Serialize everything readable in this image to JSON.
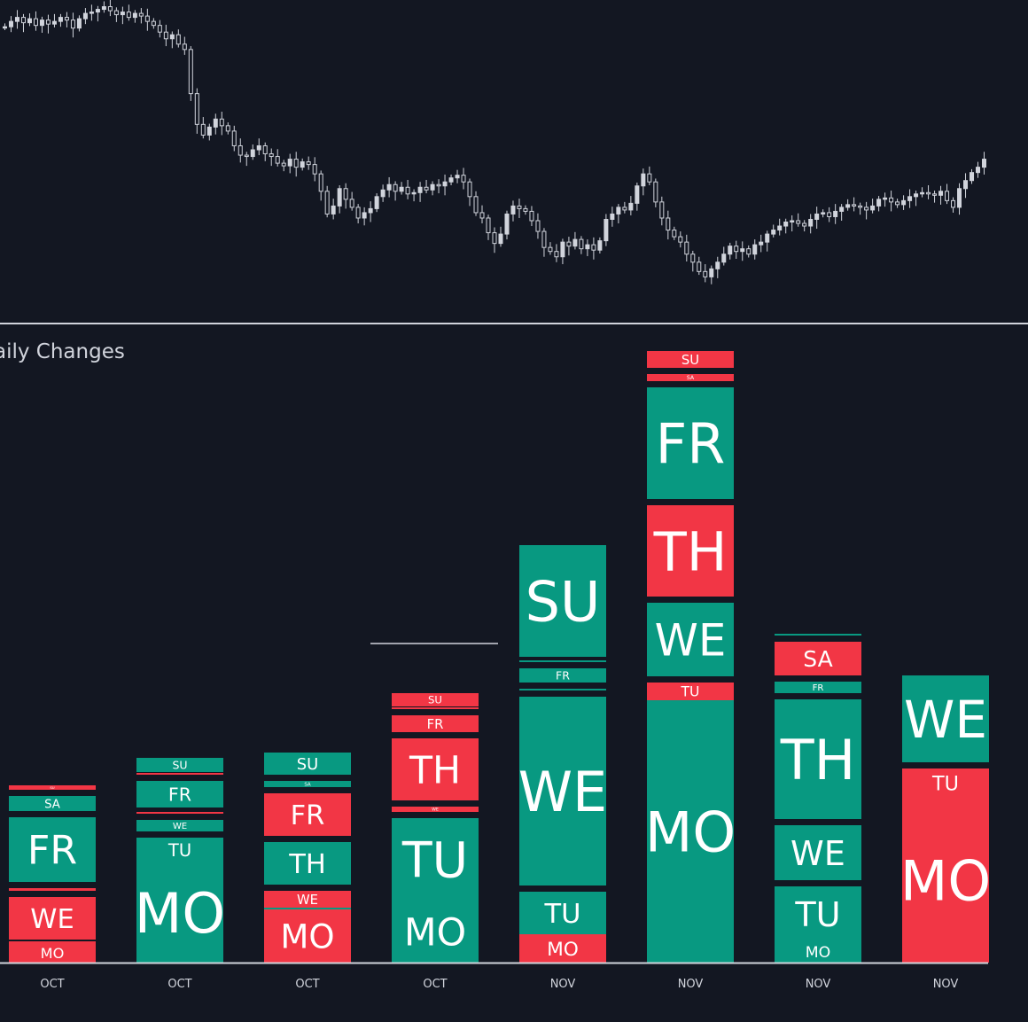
{
  "panel": {
    "title": "aily Changes"
  },
  "colors": {
    "background": "#131722",
    "up": "#089981",
    "down": "#f23645",
    "text": "#ffffff",
    "axis": "#d1d4dc",
    "candle": "#d1d4dc"
  },
  "price_chart": {
    "type": "candlestick",
    "close_series": [
      98.5,
      98.9,
      99.2,
      98.8,
      99.1,
      98.6,
      99.0,
      98.7,
      98.9,
      99.2,
      99.0,
      98.4,
      99.1,
      99.5,
      99.6,
      99.8,
      100.0,
      99.7,
      99.4,
      99.6,
      99.2,
      99.5,
      99.3,
      98.9,
      98.6,
      98.1,
      97.6,
      97.9,
      97.2,
      96.8,
      93.5,
      91.2,
      90.4,
      91.0,
      91.6,
      91.1,
      90.7,
      89.6,
      88.9,
      88.8,
      89.3,
      89.6,
      89.0,
      88.8,
      88.3,
      88.1,
      88.6,
      88.0,
      88.4,
      88.2,
      87.5,
      86.2,
      84.5,
      85.1,
      86.4,
      85.6,
      85.0,
      84.2,
      84.6,
      84.9,
      85.8,
      86.3,
      86.7,
      86.2,
      86.5,
      86.0,
      86.1,
      86.5,
      86.3,
      86.7,
      86.6,
      86.9,
      87.2,
      87.4,
      86.9,
      85.8,
      84.6,
      84.2,
      83.1,
      82.3,
      83.0,
      84.5,
      85.1,
      84.9,
      84.7,
      84.0,
      83.2,
      82.0,
      81.7,
      81.3,
      82.4,
      82.1,
      82.6,
      81.9,
      82.2,
      81.8,
      82.5,
      84.1,
      84.5,
      85.0,
      84.8,
      85.3,
      86.6,
      87.5,
      86.9,
      85.4,
      84.2,
      83.3,
      82.8,
      82.4,
      81.5,
      80.9,
      80.2,
      79.8,
      80.4,
      80.9,
      81.5,
      82.1,
      81.7,
      81.9,
      81.5,
      82.2,
      82.4,
      83.0,
      83.3,
      83.6,
      83.9,
      84.0,
      83.8,
      83.6,
      84.1,
      84.5,
      84.6,
      84.3,
      84.7,
      85.0,
      85.2,
      85.1,
      85.0,
      84.8,
      85.1,
      85.6,
      85.7,
      85.4,
      85.2,
      85.5,
      85.8,
      86.0,
      86.1,
      86.0,
      85.9,
      86.2,
      85.5,
      85.0,
      86.4,
      87.0,
      87.6,
      88.0,
      88.6
    ]
  },
  "chart_data": {
    "type": "bar",
    "stacking": "stacked",
    "categories": [
      "OCT",
      "OCT",
      "OCT",
      "OCT",
      "NOV",
      "NOV",
      "NOV",
      "NOV"
    ],
    "y_range": [
      0,
      7.4
    ],
    "reference_line_value": 3.3,
    "stacks": [
      {
        "label": "OCT",
        "segments": [
          {
            "day": "MO",
            "value": 0.22,
            "dir": "down"
          },
          {
            "day": "TU",
            "value": 0.04,
            "dir": "down"
          },
          {
            "day": "WE",
            "value": 0.55,
            "dir": "down"
          },
          {
            "day": "TH",
            "value": 0.1,
            "dir": "down"
          },
          {
            "day": "FR",
            "value": 0.8,
            "dir": "up"
          },
          {
            "day": "SA",
            "value": 0.24,
            "dir": "up"
          },
          {
            "day": "SU",
            "value": 0.12,
            "dir": "down"
          }
        ]
      },
      {
        "label": "OCT",
        "segments": [
          {
            "day": "MO",
            "value": 1.13,
            "dir": "up"
          },
          {
            "day": "TU",
            "value": 0.35,
            "dir": "up"
          },
          {
            "day": "WE",
            "value": 0.2,
            "dir": "up"
          },
          {
            "day": "TH",
            "value": 0.07,
            "dir": "down"
          },
          {
            "day": "FR",
            "value": 0.37,
            "dir": "up"
          },
          {
            "day": "SA",
            "value": 0.03,
            "dir": "down"
          },
          {
            "day": "SU",
            "value": 0.23,
            "dir": "up"
          }
        ]
      },
      {
        "label": "OCT",
        "segments": [
          {
            "day": "MO",
            "value": 0.6,
            "dir": "down"
          },
          {
            "day": "TU",
            "value": 0.02,
            "dir": "up"
          },
          {
            "day": "WE",
            "value": 0.26,
            "dir": "down"
          },
          {
            "day": "TH",
            "value": 0.55,
            "dir": "up"
          },
          {
            "day": "FR",
            "value": 0.55,
            "dir": "down"
          },
          {
            "day": "SA",
            "value": 0.14,
            "dir": "up"
          },
          {
            "day": "SU",
            "value": 0.32,
            "dir": "up"
          }
        ]
      },
      {
        "label": "OCT",
        "segments": [
          {
            "day": "MO",
            "value": 0.7,
            "dir": "up"
          },
          {
            "day": "TU",
            "value": 1.0,
            "dir": "up"
          },
          {
            "day": "WE",
            "value": 0.13,
            "dir": "down"
          },
          {
            "day": "TH",
            "value": 0.77,
            "dir": "down"
          },
          {
            "day": "FR",
            "value": 0.26,
            "dir": "down"
          },
          {
            "day": "SA",
            "value": 0.03,
            "dir": "down"
          },
          {
            "day": "SU",
            "value": 0.22,
            "dir": "down"
          }
        ]
      },
      {
        "label": "NOV",
        "segments": [
          {
            "day": "MO",
            "value": 0.32,
            "dir": "down"
          },
          {
            "day": "TU",
            "value": 0.55,
            "dir": "up"
          },
          {
            "day": "WE",
            "value": 2.2,
            "dir": "up"
          },
          {
            "day": "TH",
            "value": 0.09,
            "dir": "up"
          },
          {
            "day": "FR",
            "value": 0.23,
            "dir": "up"
          },
          {
            "day": "SA",
            "value": 0.06,
            "dir": "up"
          },
          {
            "day": "SU",
            "value": 1.33,
            "dir": "up"
          }
        ]
      },
      {
        "label": "NOV",
        "segments": [
          {
            "day": "MO",
            "value": 2.96,
            "dir": "up"
          },
          {
            "day": "TU",
            "value": 0.27,
            "dir": "down"
          },
          {
            "day": "WE",
            "value": 0.9,
            "dir": "up"
          },
          {
            "day": "TH",
            "value": 1.1,
            "dir": "down"
          },
          {
            "day": "FR",
            "value": 1.33,
            "dir": "up"
          },
          {
            "day": "SA",
            "value": 0.15,
            "dir": "down"
          },
          {
            "day": "SU",
            "value": 0.26,
            "dir": "down"
          }
        ]
      },
      {
        "label": "NOV",
        "segments": [
          {
            "day": "MO",
            "value": 0.24,
            "dir": "up"
          },
          {
            "day": "TU",
            "value": 0.69,
            "dir": "up"
          },
          {
            "day": "WE",
            "value": 0.69,
            "dir": "up"
          },
          {
            "day": "TH",
            "value": 1.42,
            "dir": "up"
          },
          {
            "day": "FR",
            "value": 0.2,
            "dir": "up"
          },
          {
            "day": "SA",
            "value": 0.45,
            "dir": "down"
          },
          {
            "day": "SU",
            "value": 0.07,
            "dir": "up"
          }
        ]
      },
      {
        "label": "NOV",
        "segments": [
          {
            "day": "MO",
            "value": 1.86,
            "dir": "down"
          },
          {
            "day": "TU",
            "value": 0.4,
            "dir": "down"
          },
          {
            "day": "WE",
            "value": 1.05,
            "dir": "up"
          }
        ]
      }
    ]
  }
}
